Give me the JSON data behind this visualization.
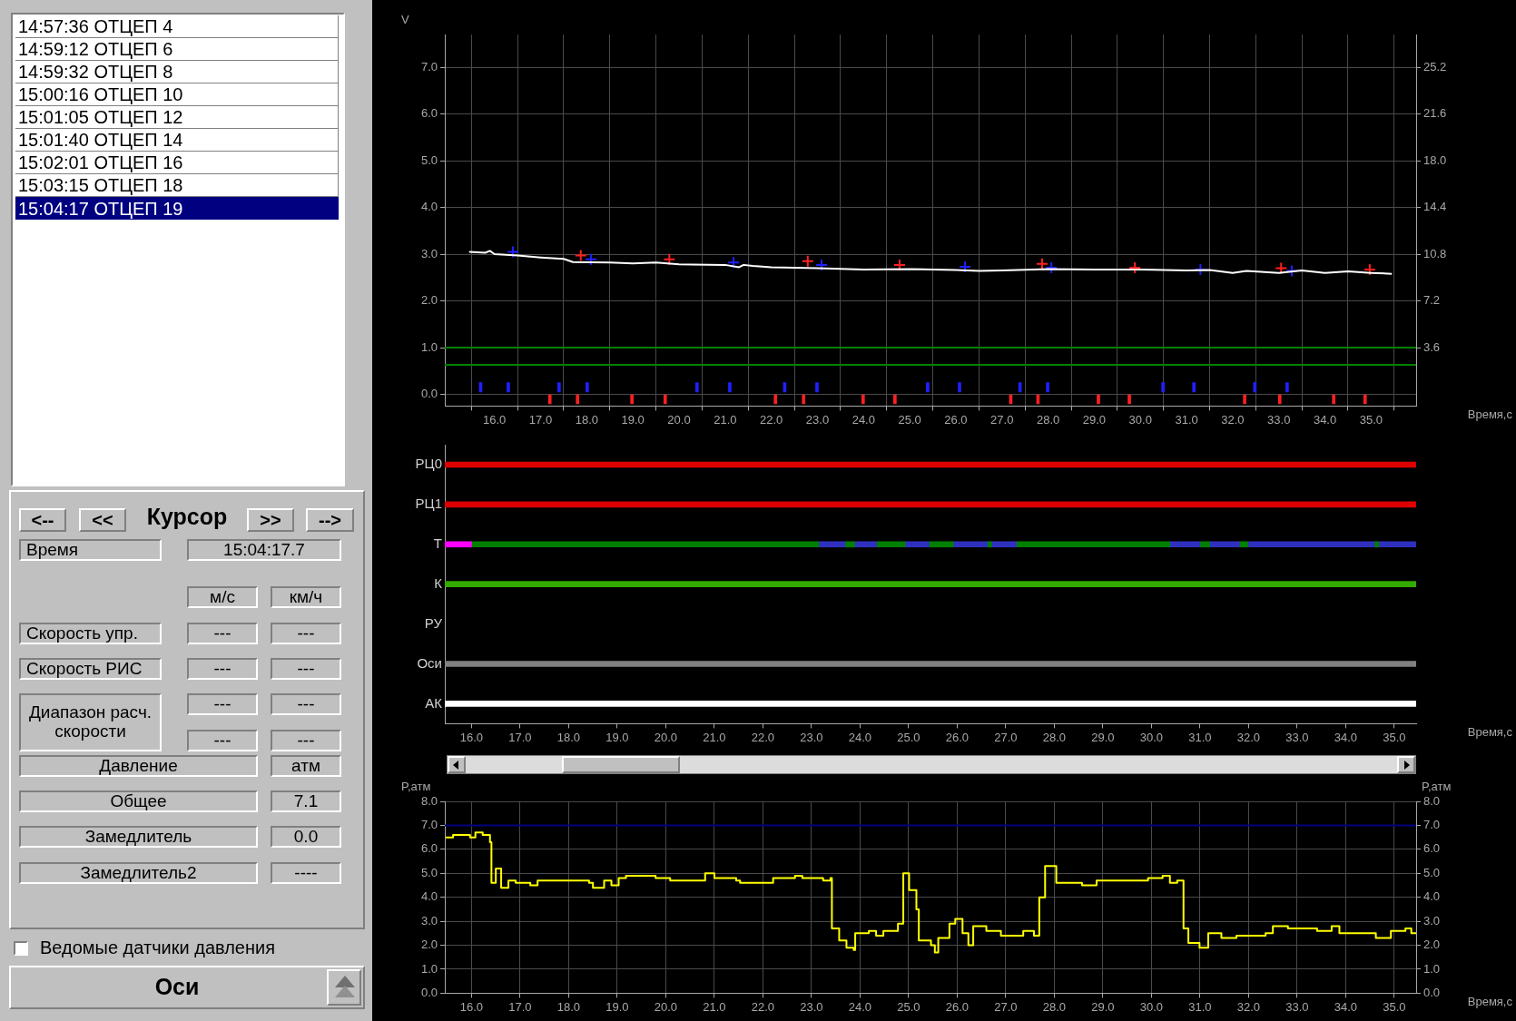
{
  "chart_data": [
    {
      "type": "other",
      "annotations": [
        "14:57:36  ОТЦЕП 4",
        "14:59:12  ОТЦЕП 6",
        "14:59:32  ОТЦЕП 8",
        "15:00:16  ОТЦЕП 10",
        "15:01:05  ОТЦЕП 12",
        "15:01:40  ОТЦЕП 14",
        "15:02:01  ОТЦЕП 16",
        "15:03:15  ОТЦЕП 18",
        "15:04:17  ОТЦЕП 19",
        "<--",
        "<<",
        "Курсор",
        ">>",
        "-->",
        "Время",
        "15:04:17.7",
        "м/с",
        "км/ч",
        "Скорость упр.",
        "---",
        "---",
        "Скорость РИС",
        "---",
        "---",
        "Диапазон расч. скорости",
        "---",
        "---",
        "---",
        "---",
        "Давление",
        "атм",
        "Общее",
        "7.1",
        "Замедлитель",
        "0.0",
        "Замедлитель2",
        "----",
        "Ведомые датчики давления",
        "Оси"
      ]
    },
    {
      "type": "line",
      "ylabel": "V",
      "xlabel": "Время,с",
      "grid": true,
      "xlim": [
        15.45,
        35.45
      ],
      "xticks": [
        {
          "value": 16,
          "label": "16.0"
        },
        {
          "value": 17,
          "label": "17.0"
        },
        {
          "value": 18,
          "label": "18.0"
        },
        {
          "value": 19,
          "label": "19.0"
        },
        {
          "value": 20,
          "label": "20.0"
        },
        {
          "value": 21,
          "label": "21.0"
        },
        {
          "value": 22,
          "label": "22.0"
        },
        {
          "value": 23,
          "label": "23.0"
        },
        {
          "value": 24,
          "label": "24.0"
        },
        {
          "value": 25,
          "label": "25.0"
        },
        {
          "value": 26,
          "label": "26.0"
        },
        {
          "value": 27,
          "label": "27.0"
        },
        {
          "value": 28,
          "label": "28.0"
        },
        {
          "value": 29,
          "label": "29.0"
        },
        {
          "value": 30,
          "label": "30.0"
        },
        {
          "value": 31,
          "label": "31.0"
        },
        {
          "value": 32,
          "label": "32.0"
        },
        {
          "value": 33,
          "label": "33.0"
        },
        {
          "value": 34,
          "label": "34.0"
        },
        {
          "value": 35,
          "label": "35.0"
        }
      ],
      "ylim": [
        -0.25,
        7.7
      ],
      "yticks": [
        {
          "value": 0,
          "label": "0.0"
        },
        {
          "value": 1,
          "label": "1.0"
        },
        {
          "value": 2,
          "label": "2.0"
        },
        {
          "value": 3,
          "label": "3.0"
        },
        {
          "value": 4,
          "label": "4.0"
        },
        {
          "value": 5,
          "label": "5.0"
        },
        {
          "value": 6,
          "label": "6.0"
        },
        {
          "value": 7,
          "label": "7.0"
        }
      ],
      "y2lim": [
        -0.9,
        27.72
      ],
      "y2ticks": [
        {
          "value": 3.6,
          "label": "3.6"
        },
        {
          "value": 7.2,
          "label": "7.2"
        },
        {
          "value": 10.8,
          "label": "10.8"
        },
        {
          "value": 14.4,
          "label": "14.4"
        },
        {
          "value": 18,
          "label": "18.0"
        },
        {
          "value": 21.6,
          "label": "21.6"
        },
        {
          "value": 25.2,
          "label": "25.2"
        }
      ],
      "ref_lines": [
        {
          "axis": "y",
          "value": 1.0,
          "color": "#008000"
        },
        {
          "axis": "y",
          "value": 0.63,
          "color": "#008000"
        }
      ],
      "series": [
        {
          "color": "#ffffff",
          "marker": "none",
          "x": [
            15.45,
            15.8,
            15.9,
            16.0,
            16.5,
            17.0,
            17.5,
            17.7,
            18.5,
            19.0,
            19.5,
            20.0,
            21.0,
            21.3,
            21.4,
            21.6,
            22.0,
            23.0,
            24.0,
            25.0,
            26.0,
            26.5,
            27.0,
            28.0,
            29.0,
            30.0,
            31.0,
            31.5,
            32.0,
            32.3,
            33.0,
            33.5,
            34.0,
            34.5,
            35.0,
            35.45
          ],
          "values": [
            3.05,
            3.03,
            3.07,
            3.0,
            2.97,
            2.93,
            2.9,
            2.83,
            2.82,
            2.8,
            2.82,
            2.78,
            2.77,
            2.72,
            2.77,
            2.75,
            2.72,
            2.7,
            2.67,
            2.68,
            2.66,
            2.64,
            2.65,
            2.68,
            2.67,
            2.67,
            2.65,
            2.66,
            2.6,
            2.64,
            2.6,
            2.65,
            2.6,
            2.63,
            2.6,
            2.58
          ]
        },
        {
          "type": "scatter",
          "color": "#ff2020",
          "marker": "cross",
          "x": [
            17.87,
            19.79,
            22.79,
            24.78,
            27.87,
            29.88,
            33.05,
            34.97
          ],
          "values": [
            2.97,
            2.89,
            2.85,
            2.77,
            2.79,
            2.71,
            2.7,
            2.67
          ]
        },
        {
          "type": "scatter",
          "color": "#2020ff",
          "marker": "cross",
          "x": [
            16.4,
            18.09,
            21.18,
            23.09,
            26.2,
            28.07,
            31.3,
            33.28
          ],
          "values": [
            3.05,
            2.89,
            2.82,
            2.77,
            2.73,
            2.71,
            2.67,
            2.64
          ]
        },
        {
          "type": "bar",
          "color": "#2020ff",
          "x": [
            15.7,
            16.3,
            17.4,
            18.01,
            20.39,
            21.1,
            22.29,
            22.99,
            25.39,
            26.08,
            27.39,
            27.99,
            30.49,
            31.16,
            32.48,
            33.18
          ],
          "base": [
            0.05,
            0.05,
            0.05,
            0.05,
            0.05,
            0.05,
            0.05,
            0.05,
            0.05,
            0.05,
            0.05,
            0.05,
            0.05,
            0.05,
            0.05,
            0.05
          ],
          "values": [
            0.2,
            0.2,
            0.2,
            0.2,
            0.2,
            0.2,
            0.2,
            0.2,
            0.2,
            0.2,
            0.2,
            0.2,
            0.2,
            0.2,
            0.2,
            0.2
          ]
        },
        {
          "type": "bar",
          "color": "#ff2020",
          "x": [
            17.2,
            17.8,
            18.98,
            19.7,
            22.09,
            22.7,
            23.99,
            24.68,
            27.19,
            27.78,
            29.09,
            29.76,
            32.26,
            33.02,
            34.19,
            34.87
          ],
          "base": [
            -0.2,
            -0.2,
            -0.2,
            -0.2,
            -0.2,
            -0.2,
            -0.2,
            -0.2,
            -0.2,
            -0.2,
            -0.2,
            -0.2,
            -0.2,
            -0.2,
            -0.2,
            -0.2
          ],
          "values": [
            0.2,
            0.2,
            0.2,
            0.2,
            0.2,
            0.2,
            0.2,
            0.2,
            0.2,
            0.2,
            0.2,
            0.2,
            0.2,
            0.2,
            0.2,
            0.2
          ]
        }
      ]
    },
    {
      "type": "bar",
      "orientation": "horizontal",
      "xlabel": "Время,с",
      "grid": false,
      "categories": [
        "РЦ0",
        "РЦ1",
        "Т",
        "К",
        "РУ",
        "Оси",
        "АК"
      ],
      "xlim": [
        15.45,
        35.45
      ],
      "xticks": [
        {
          "value": 16,
          "label": "16.0"
        },
        {
          "value": 17,
          "label": "17.0"
        },
        {
          "value": 18,
          "label": "18.0"
        },
        {
          "value": 19,
          "label": "19.0"
        },
        {
          "value": 20,
          "label": "20.0"
        },
        {
          "value": 21,
          "label": "21.0"
        },
        {
          "value": 22,
          "label": "22.0"
        },
        {
          "value": 23,
          "label": "23.0"
        },
        {
          "value": 24,
          "label": "24.0"
        },
        {
          "value": 25,
          "label": "25.0"
        },
        {
          "value": 26,
          "label": "26.0"
        },
        {
          "value": 27,
          "label": "27.0"
        },
        {
          "value": 28,
          "label": "28.0"
        },
        {
          "value": 29,
          "label": "29.0"
        },
        {
          "value": 30,
          "label": "30.0"
        },
        {
          "value": 31,
          "label": "31.0"
        },
        {
          "value": 32,
          "label": "32.0"
        },
        {
          "value": 33,
          "label": "33.0"
        },
        {
          "value": 34,
          "label": "34.0"
        },
        {
          "value": 35,
          "label": "35.0"
        }
      ],
      "series": [
        {
          "color": "#dd0000",
          "base": [
            15.45,
            15.45,
            null,
            null,
            null,
            null,
            null
          ],
          "values": [
            20.0,
            20.0,
            null,
            null,
            null,
            null,
            null
          ]
        },
        {
          "color": "#ff00ff",
          "base": [
            null,
            null,
            15.45,
            null,
            null,
            null,
            null
          ],
          "values": [
            null,
            null,
            0.55,
            null,
            null,
            null,
            null
          ]
        },
        {
          "color": "#008000",
          "base": [
            null,
            null,
            16.0,
            null,
            null,
            null,
            null
          ],
          "values": [
            null,
            null,
            7.15,
            null,
            null,
            null,
            null
          ]
        },
        {
          "color": "#3030c0",
          "base": [
            null,
            null,
            23.15,
            null,
            null,
            null,
            null
          ],
          "values": [
            null,
            null,
            0.54,
            null,
            null,
            null,
            null
          ]
        },
        {
          "color": "#008000",
          "base": [
            null,
            null,
            23.69,
            null,
            null,
            null,
            null
          ],
          "values": [
            null,
            null,
            0.2,
            null,
            null,
            null,
            null
          ]
        },
        {
          "color": "#3030c0",
          "base": [
            null,
            null,
            23.89,
            null,
            null,
            null,
            null
          ],
          "values": [
            null,
            null,
            0.45,
            null,
            null,
            null,
            null
          ]
        },
        {
          "color": "#008000",
          "base": [
            null,
            null,
            24.34,
            null,
            null,
            null,
            null
          ],
          "values": [
            null,
            null,
            0.59,
            null,
            null,
            null,
            null
          ]
        },
        {
          "color": "#3030c0",
          "base": [
            null,
            null,
            24.93,
            null,
            null,
            null,
            null
          ],
          "values": [
            null,
            null,
            0.49,
            null,
            null,
            null,
            null
          ]
        },
        {
          "color": "#008000",
          "base": [
            null,
            null,
            25.42,
            null,
            null,
            null,
            null
          ],
          "values": [
            null,
            null,
            0.5,
            null,
            null,
            null,
            null
          ]
        },
        {
          "color": "#3030c0",
          "base": [
            null,
            null,
            25.92,
            null,
            null,
            null,
            null
          ],
          "values": [
            null,
            null,
            0.7,
            null,
            null,
            null,
            null
          ]
        },
        {
          "color": "#008000",
          "base": [
            null,
            null,
            26.62,
            null,
            null,
            null,
            null
          ],
          "values": [
            null,
            null,
            0.09,
            null,
            null,
            null,
            null
          ]
        },
        {
          "color": "#3030c0",
          "base": [
            null,
            null,
            26.71,
            null,
            null,
            null,
            null
          ],
          "values": [
            null,
            null,
            0.51,
            null,
            null,
            null,
            null
          ]
        },
        {
          "color": "#008000",
          "base": [
            null,
            null,
            27.22,
            null,
            null,
            null,
            null
          ],
          "values": [
            null,
            null,
            3.16,
            null,
            null,
            null,
            null
          ]
        },
        {
          "color": "#3030c0",
          "base": [
            null,
            null,
            30.38,
            null,
            null,
            null,
            null
          ],
          "values": [
            null,
            null,
            0.62,
            null,
            null,
            null,
            null
          ]
        },
        {
          "color": "#008000",
          "base": [
            null,
            null,
            31.0,
            null,
            null,
            null,
            null
          ],
          "values": [
            null,
            null,
            0.2,
            null,
            null,
            null,
            null
          ]
        },
        {
          "color": "#3030c0",
          "base": [
            null,
            null,
            31.2,
            null,
            null,
            null,
            null
          ],
          "values": [
            null,
            null,
            0.61,
            null,
            null,
            null,
            null
          ]
        },
        {
          "color": "#008000",
          "base": [
            null,
            null,
            31.81,
            null,
            null,
            null,
            null
          ],
          "values": [
            null,
            null,
            0.18,
            null,
            null,
            null,
            null
          ]
        },
        {
          "color": "#3030c0",
          "base": [
            null,
            null,
            31.99,
            null,
            null,
            null,
            null
          ],
          "values": [
            null,
            null,
            2.6,
            null,
            null,
            null,
            null
          ]
        },
        {
          "color": "#008000",
          "base": [
            null,
            null,
            34.59,
            null,
            null,
            null,
            null
          ],
          "values": [
            null,
            null,
            0.09,
            null,
            null,
            null,
            null
          ]
        },
        {
          "color": "#3030c0",
          "base": [
            null,
            null,
            34.68,
            null,
            null,
            null,
            null
          ],
          "values": [
            null,
            null,
            0.77,
            null,
            null,
            null,
            null
          ]
        },
        {
          "color": "#33aa00",
          "base": [
            null,
            null,
            null,
            15.45,
            null,
            null,
            null
          ],
          "values": [
            null,
            null,
            null,
            20.0,
            null,
            null,
            null
          ]
        },
        {
          "color": "#808080",
          "base": [
            null,
            null,
            null,
            null,
            null,
            15.45,
            null
          ],
          "values": [
            null,
            null,
            null,
            null,
            null,
            20.0,
            null
          ]
        },
        {
          "color": "#ffffff",
          "base": [
            null,
            null,
            null,
            null,
            null,
            null,
            15.45
          ],
          "values": [
            null,
            null,
            null,
            null,
            null,
            null,
            20.0
          ]
        }
      ]
    },
    {
      "type": "step",
      "ylabel": "P,атм",
      "y2label": "P,атм",
      "xlabel": "Время,с",
      "grid": true,
      "xlim": [
        15.45,
        35.45
      ],
      "xticks": [
        {
          "value": 16,
          "label": "16.0"
        },
        {
          "value": 17,
          "label": "17.0"
        },
        {
          "value": 18,
          "label": "18.0"
        },
        {
          "value": 19,
          "label": "19.0"
        },
        {
          "value": 20,
          "label": "20.0"
        },
        {
          "value": 21,
          "label": "21.0"
        },
        {
          "value": 22,
          "label": "22.0"
        },
        {
          "value": 23,
          "label": "23.0"
        },
        {
          "value": 24,
          "label": "24.0"
        },
        {
          "value": 25,
          "label": "25.0"
        },
        {
          "value": 26,
          "label": "26.0"
        },
        {
          "value": 27,
          "label": "27.0"
        },
        {
          "value": 28,
          "label": "28.0"
        },
        {
          "value": 29,
          "label": "29.0"
        },
        {
          "value": 30,
          "label": "30.0"
        },
        {
          "value": 31,
          "label": "31.0"
        },
        {
          "value": 32,
          "label": "32.0"
        },
        {
          "value": 33,
          "label": "33.0"
        },
        {
          "value": 34,
          "label": "34.0"
        },
        {
          "value": 35,
          "label": "35.0"
        }
      ],
      "ylim": [
        0,
        8
      ],
      "yticks": [
        {
          "value": 0,
          "label": "0.0"
        },
        {
          "value": 1,
          "label": "1.0"
        },
        {
          "value": 2,
          "label": "2.0"
        },
        {
          "value": 3,
          "label": "3.0"
        },
        {
          "value": 4,
          "label": "4.0"
        },
        {
          "value": 5,
          "label": "5.0"
        },
        {
          "value": 6,
          "label": "6.0"
        },
        {
          "value": 7,
          "label": "7.0"
        },
        {
          "value": 8,
          "label": "8.0"
        }
      ],
      "y2lim": [
        0,
        8
      ],
      "y2ticks": [
        {
          "value": 0,
          "label": "0.0"
        },
        {
          "value": 1,
          "label": "1.0"
        },
        {
          "value": 2,
          "label": "2.0"
        },
        {
          "value": 3,
          "label": "3.0"
        },
        {
          "value": 4,
          "label": "4.0"
        },
        {
          "value": 5,
          "label": "5.0"
        },
        {
          "value": 6,
          "label": "6.0"
        },
        {
          "value": 7,
          "label": "7.0"
        },
        {
          "value": 8,
          "label": "8.0"
        }
      ],
      "ref_lines": [
        {
          "axis": "y",
          "value": 7.0,
          "color": "#000080"
        }
      ],
      "series": [
        {
          "color": "#ffff00",
          "x": [
            15.47,
            15.62,
            15.92,
            15.97,
            16.08,
            16.23,
            16.38,
            16.41,
            16.5,
            16.61,
            16.76,
            16.91,
            17.21,
            17.36,
            17.82,
            18.42,
            18.5,
            18.73,
            18.88,
            19.03,
            19.18,
            19.79,
            20.09,
            20.69,
            20.81,
            21.0,
            21.45,
            21.53,
            22.21,
            22.66,
            22.81,
            23.12,
            23.24,
            23.39,
            23.42,
            23.57,
            23.72,
            23.87,
            23.9,
            24.18,
            24.33,
            24.48,
            24.78,
            24.89,
            25.01,
            25.16,
            25.21,
            25.46,
            25.54,
            25.61,
            25.84,
            25.96,
            26.11,
            26.23,
            26.33,
            26.6,
            26.9,
            27.36,
            27.58,
            27.69,
            27.81,
            28.04,
            28.57,
            28.87,
            29.63,
            29.93,
            30.23,
            30.38,
            30.53,
            30.66,
            30.76,
            30.99,
            31.17,
            31.44,
            31.75,
            32.35,
            32.5,
            32.81,
            33.41,
            33.71,
            33.87,
            34.32,
            34.62,
            34.93,
            35.23,
            35.35,
            35.45
          ],
          "values": [
            6.5,
            6.6,
            6.6,
            6.5,
            6.7,
            6.6,
            6.3,
            4.6,
            5.2,
            4.4,
            4.7,
            4.6,
            4.5,
            4.7,
            4.7,
            4.6,
            4.4,
            4.7,
            4.5,
            4.8,
            4.9,
            4.8,
            4.7,
            4.7,
            5.0,
            4.8,
            4.7,
            4.6,
            4.8,
            4.9,
            4.8,
            4.8,
            4.7,
            4.8,
            2.7,
            2.2,
            1.9,
            1.8,
            2.5,
            2.6,
            2.4,
            2.6,
            2.9,
            5.0,
            4.3,
            3.5,
            2.2,
            2.0,
            1.7,
            2.3,
            2.9,
            3.1,
            2.5,
            2.0,
            2.8,
            2.6,
            2.4,
            2.6,
            2.4,
            4.0,
            5.3,
            4.6,
            4.5,
            4.7,
            4.7,
            4.8,
            4.9,
            4.6,
            4.7,
            2.7,
            2.1,
            1.9,
            2.5,
            2.3,
            2.4,
            2.5,
            2.8,
            2.7,
            2.6,
            2.8,
            2.5,
            2.5,
            2.3,
            2.6,
            2.7,
            2.5,
            2.5
          ]
        }
      ]
    }
  ]
}
